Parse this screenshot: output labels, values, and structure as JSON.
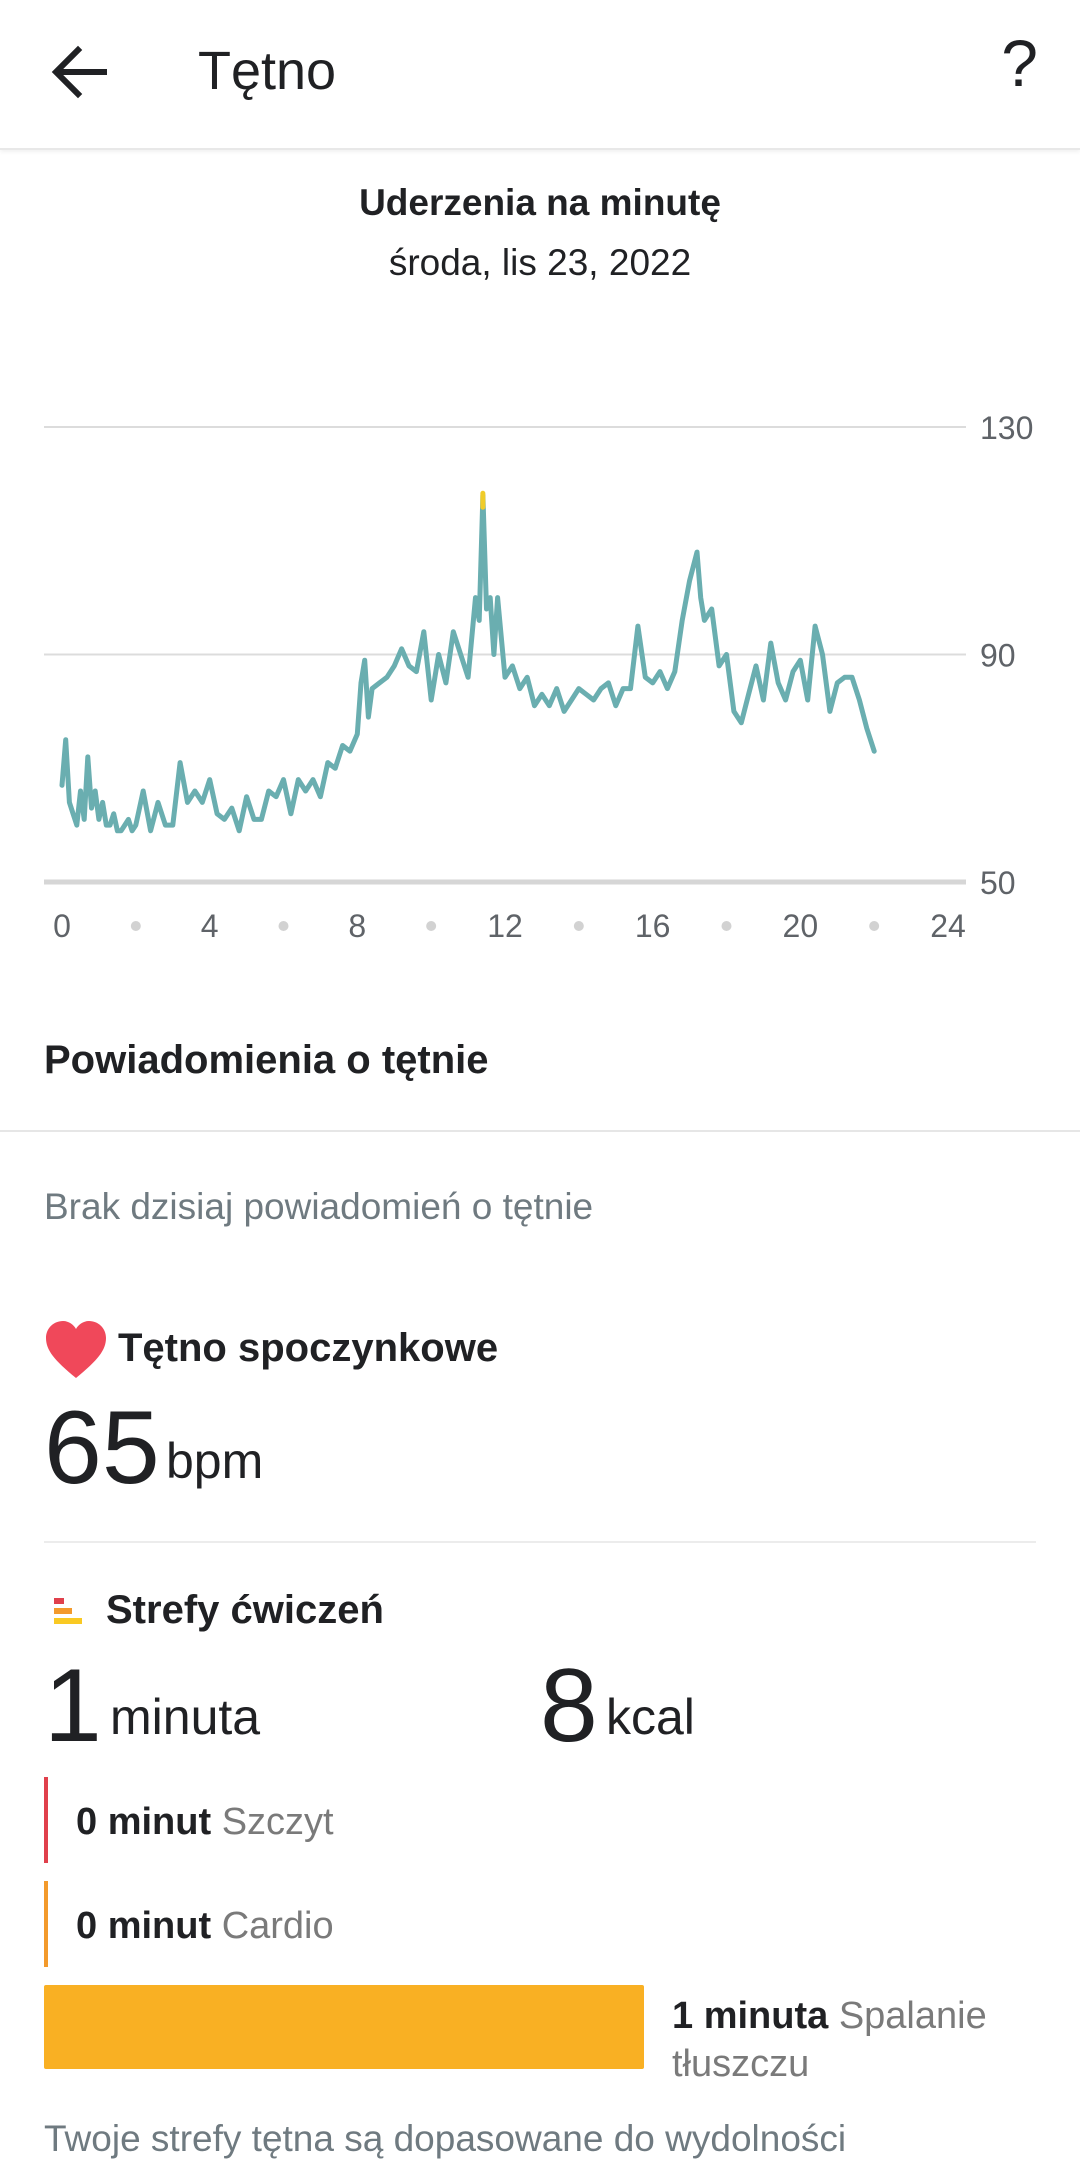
{
  "appbar": {
    "title": "Tętno",
    "back_icon": "arrow-left-icon",
    "help_label": "?"
  },
  "chart_header": {
    "title": "Uderzenia na minutę",
    "date": "środa, lis 23, 2022"
  },
  "chart_data": {
    "type": "line",
    "title": "Uderzenia na minutę",
    "xlabel": "",
    "ylabel": "",
    "xlim": [
      0,
      24
    ],
    "ylim": [
      50,
      130
    ],
    "x_ticks": [
      "0",
      "4",
      "8",
      "12",
      "16",
      "20",
      "24"
    ],
    "y_ticks": [
      "130",
      "90",
      "50"
    ],
    "grid": true,
    "line_color": "#6aaeb0",
    "peak_color": "#f0cc2a",
    "series": [
      {
        "x": [
          0.0,
          0.1,
          0.2,
          0.3,
          0.4,
          0.5,
          0.6,
          0.7,
          0.8,
          0.9,
          1.0,
          1.1,
          1.2,
          1.3,
          1.4,
          1.5,
          1.6,
          1.7,
          1.8,
          1.9,
          2.0,
          2.2,
          2.4,
          2.6,
          2.8,
          3.0,
          3.2,
          3.4,
          3.6,
          3.8,
          4.0,
          4.2,
          4.4,
          4.6,
          4.8,
          5.0,
          5.2,
          5.4,
          5.6,
          5.8,
          6.0,
          6.2,
          6.4,
          6.6,
          6.8,
          7.0,
          7.2,
          7.4,
          7.6,
          7.8,
          8.0,
          8.1,
          8.2,
          8.3,
          8.4,
          8.6,
          8.8,
          9.0,
          9.2,
          9.4,
          9.6,
          9.8,
          10.0,
          10.2,
          10.4,
          10.6,
          10.8,
          11.0,
          11.2,
          11.3,
          11.4,
          11.5,
          11.6,
          11.7,
          11.8,
          12.0,
          12.2,
          12.4,
          12.6,
          12.8,
          13.0,
          13.2,
          13.4,
          13.6,
          13.8,
          14.0,
          14.2,
          14.4,
          14.6,
          14.8,
          15.0,
          15.2,
          15.4,
          15.6,
          15.8,
          16.0,
          16.2,
          16.4,
          16.6,
          16.8,
          17.0,
          17.2,
          17.3,
          17.4,
          17.6,
          17.8,
          18.0,
          18.2,
          18.4,
          18.6,
          18.8,
          19.0,
          19.2,
          19.4,
          19.6,
          19.8,
          20.0,
          20.2,
          20.4,
          20.6,
          20.8,
          21.0,
          21.2,
          21.4,
          21.6,
          21.8,
          22.0
        ],
        "y": [
          67,
          75,
          64,
          62,
          60,
          66,
          61,
          72,
          63,
          66,
          61,
          64,
          60,
          60,
          62,
          59,
          59,
          60,
          61,
          59,
          60,
          66,
          59,
          64,
          60,
          60,
          71,
          64,
          66,
          64,
          68,
          62,
          61,
          63,
          59,
          65,
          61,
          61,
          66,
          65,
          68,
          62,
          68,
          66,
          68,
          65,
          71,
          70,
          74,
          73,
          76,
          85,
          89,
          79,
          84,
          85,
          86,
          88,
          91,
          88,
          87,
          94,
          82,
          90,
          85,
          94,
          90,
          86,
          100,
          96,
          118,
          98,
          100,
          90,
          100,
          86,
          88,
          84,
          86,
          81,
          83,
          81,
          84,
          80,
          82,
          84,
          83,
          82,
          84,
          85,
          81,
          84,
          84,
          95,
          86,
          85,
          87,
          84,
          87,
          96,
          103,
          108,
          100,
          96,
          98,
          88,
          90,
          80,
          78,
          83,
          88,
          82,
          92,
          85,
          82,
          87,
          89,
          82,
          95,
          90,
          80,
          85,
          86,
          86,
          82,
          77,
          73
        ]
      }
    ]
  },
  "alerts": {
    "title": "Powiadomienia o tętnie",
    "empty_text": "Brak dzisiaj powiadomień o tętnie"
  },
  "resting": {
    "title": "Tętno spoczynkowe",
    "value": "65",
    "unit": "bpm",
    "heart_color": "#f0485a"
  },
  "zones": {
    "title": "Strefy ćwiczeń",
    "minutes_value": "1",
    "minutes_unit": "minuta",
    "kcal_value": "8",
    "kcal_unit": "kcal",
    "rows": [
      {
        "amount": "0 minut",
        "name": "Szczyt",
        "color": "#e0404c"
      },
      {
        "amount": "0 minut",
        "name": "Cardio",
        "color": "#f39a2c"
      }
    ],
    "fat_burn": {
      "amount": "1 minuta",
      "name": "Spalanie tłuszczu",
      "color": "#f9b023",
      "share": 1.0
    },
    "footer": "Twoje strefy tętna są dopasowane do wydolności"
  }
}
